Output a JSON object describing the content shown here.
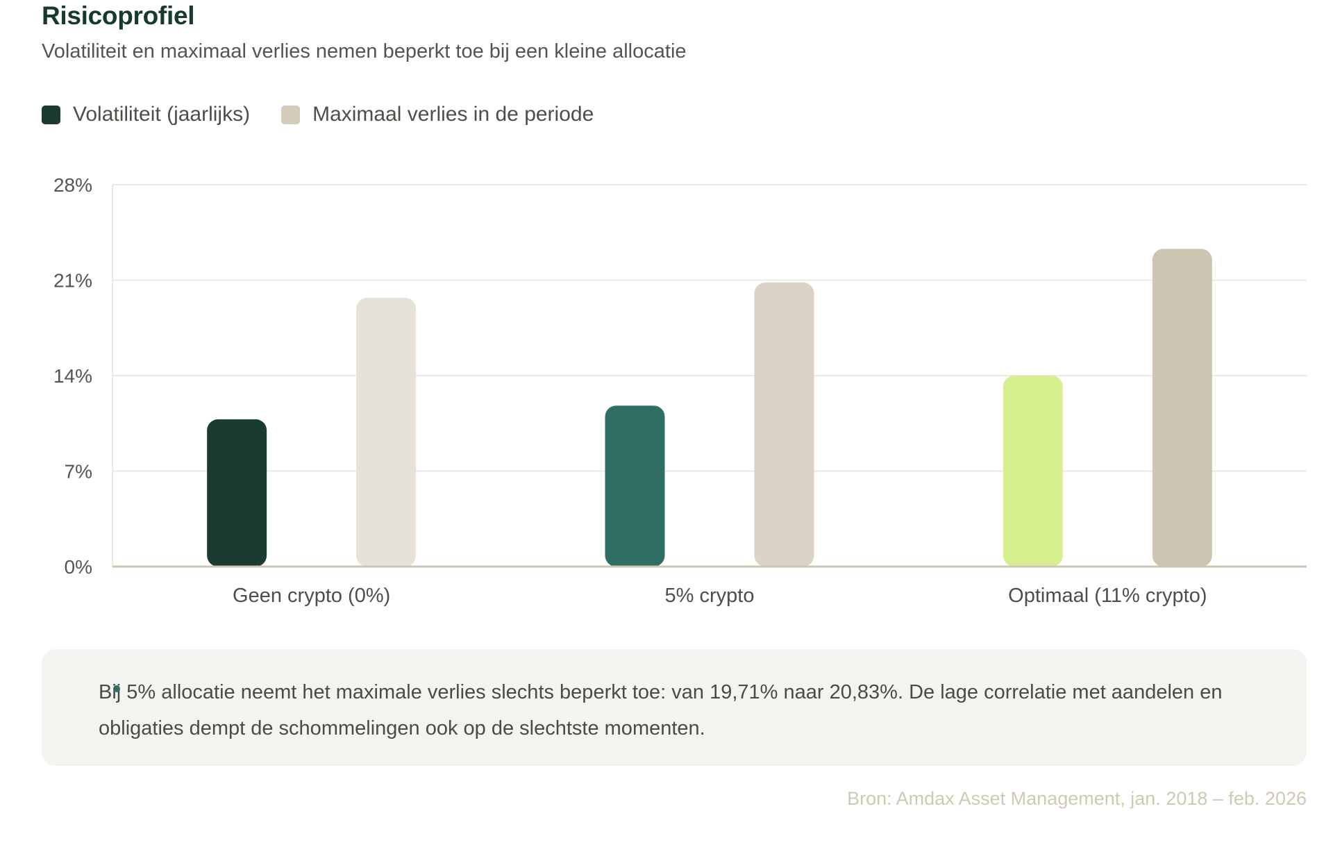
{
  "header": {
    "title": "Risicoprofiel",
    "subtitle": "Volatiliteit en maximaal verlies nemen beperkt toe bij een kleine allocatie"
  },
  "legend": [
    {
      "label": "Volatiliteit (jaarlijks)",
      "color": "#1a3a32"
    },
    {
      "label": "Maximaal verlies in de periode",
      "color": "#d3ccbb"
    }
  ],
  "chart_data": {
    "type": "bar",
    "categories": [
      "Geen crypto (0%)",
      "5% crypto",
      "Optimaal (11% crypto)"
    ],
    "series": [
      {
        "name": "Volatiliteit (jaarlijks)",
        "values": [
          10.8,
          11.8,
          14.0
        ],
        "colors": [
          "#1a3a32",
          "#2f6f63",
          "#d8ef8f"
        ]
      },
      {
        "name": "Maximaal verlies in de periode",
        "values": [
          19.71,
          20.83,
          23.3
        ],
        "colors": [
          "#e6e2d9",
          "#dbd3c6",
          "#cdc5b1"
        ]
      }
    ],
    "ylim": [
      0,
      28
    ],
    "yticks": [
      0,
      7,
      14,
      21,
      28
    ],
    "ytick_labels": [
      "0%",
      "7%",
      "14%",
      "21%",
      "28%"
    ],
    "grid": true,
    "legend_position": "top-left"
  },
  "note": {
    "text": "Bij 5% allocatie neemt het maximale verlies slechts beperkt toe: van 19,71% naar 20,83%. De lage correlatie met aandelen en obligaties dempt de schommelingen ook op de slechtste momenten."
  },
  "source": "Bron: Amdax Asset Management, jan. 2018 – feb. 2026"
}
